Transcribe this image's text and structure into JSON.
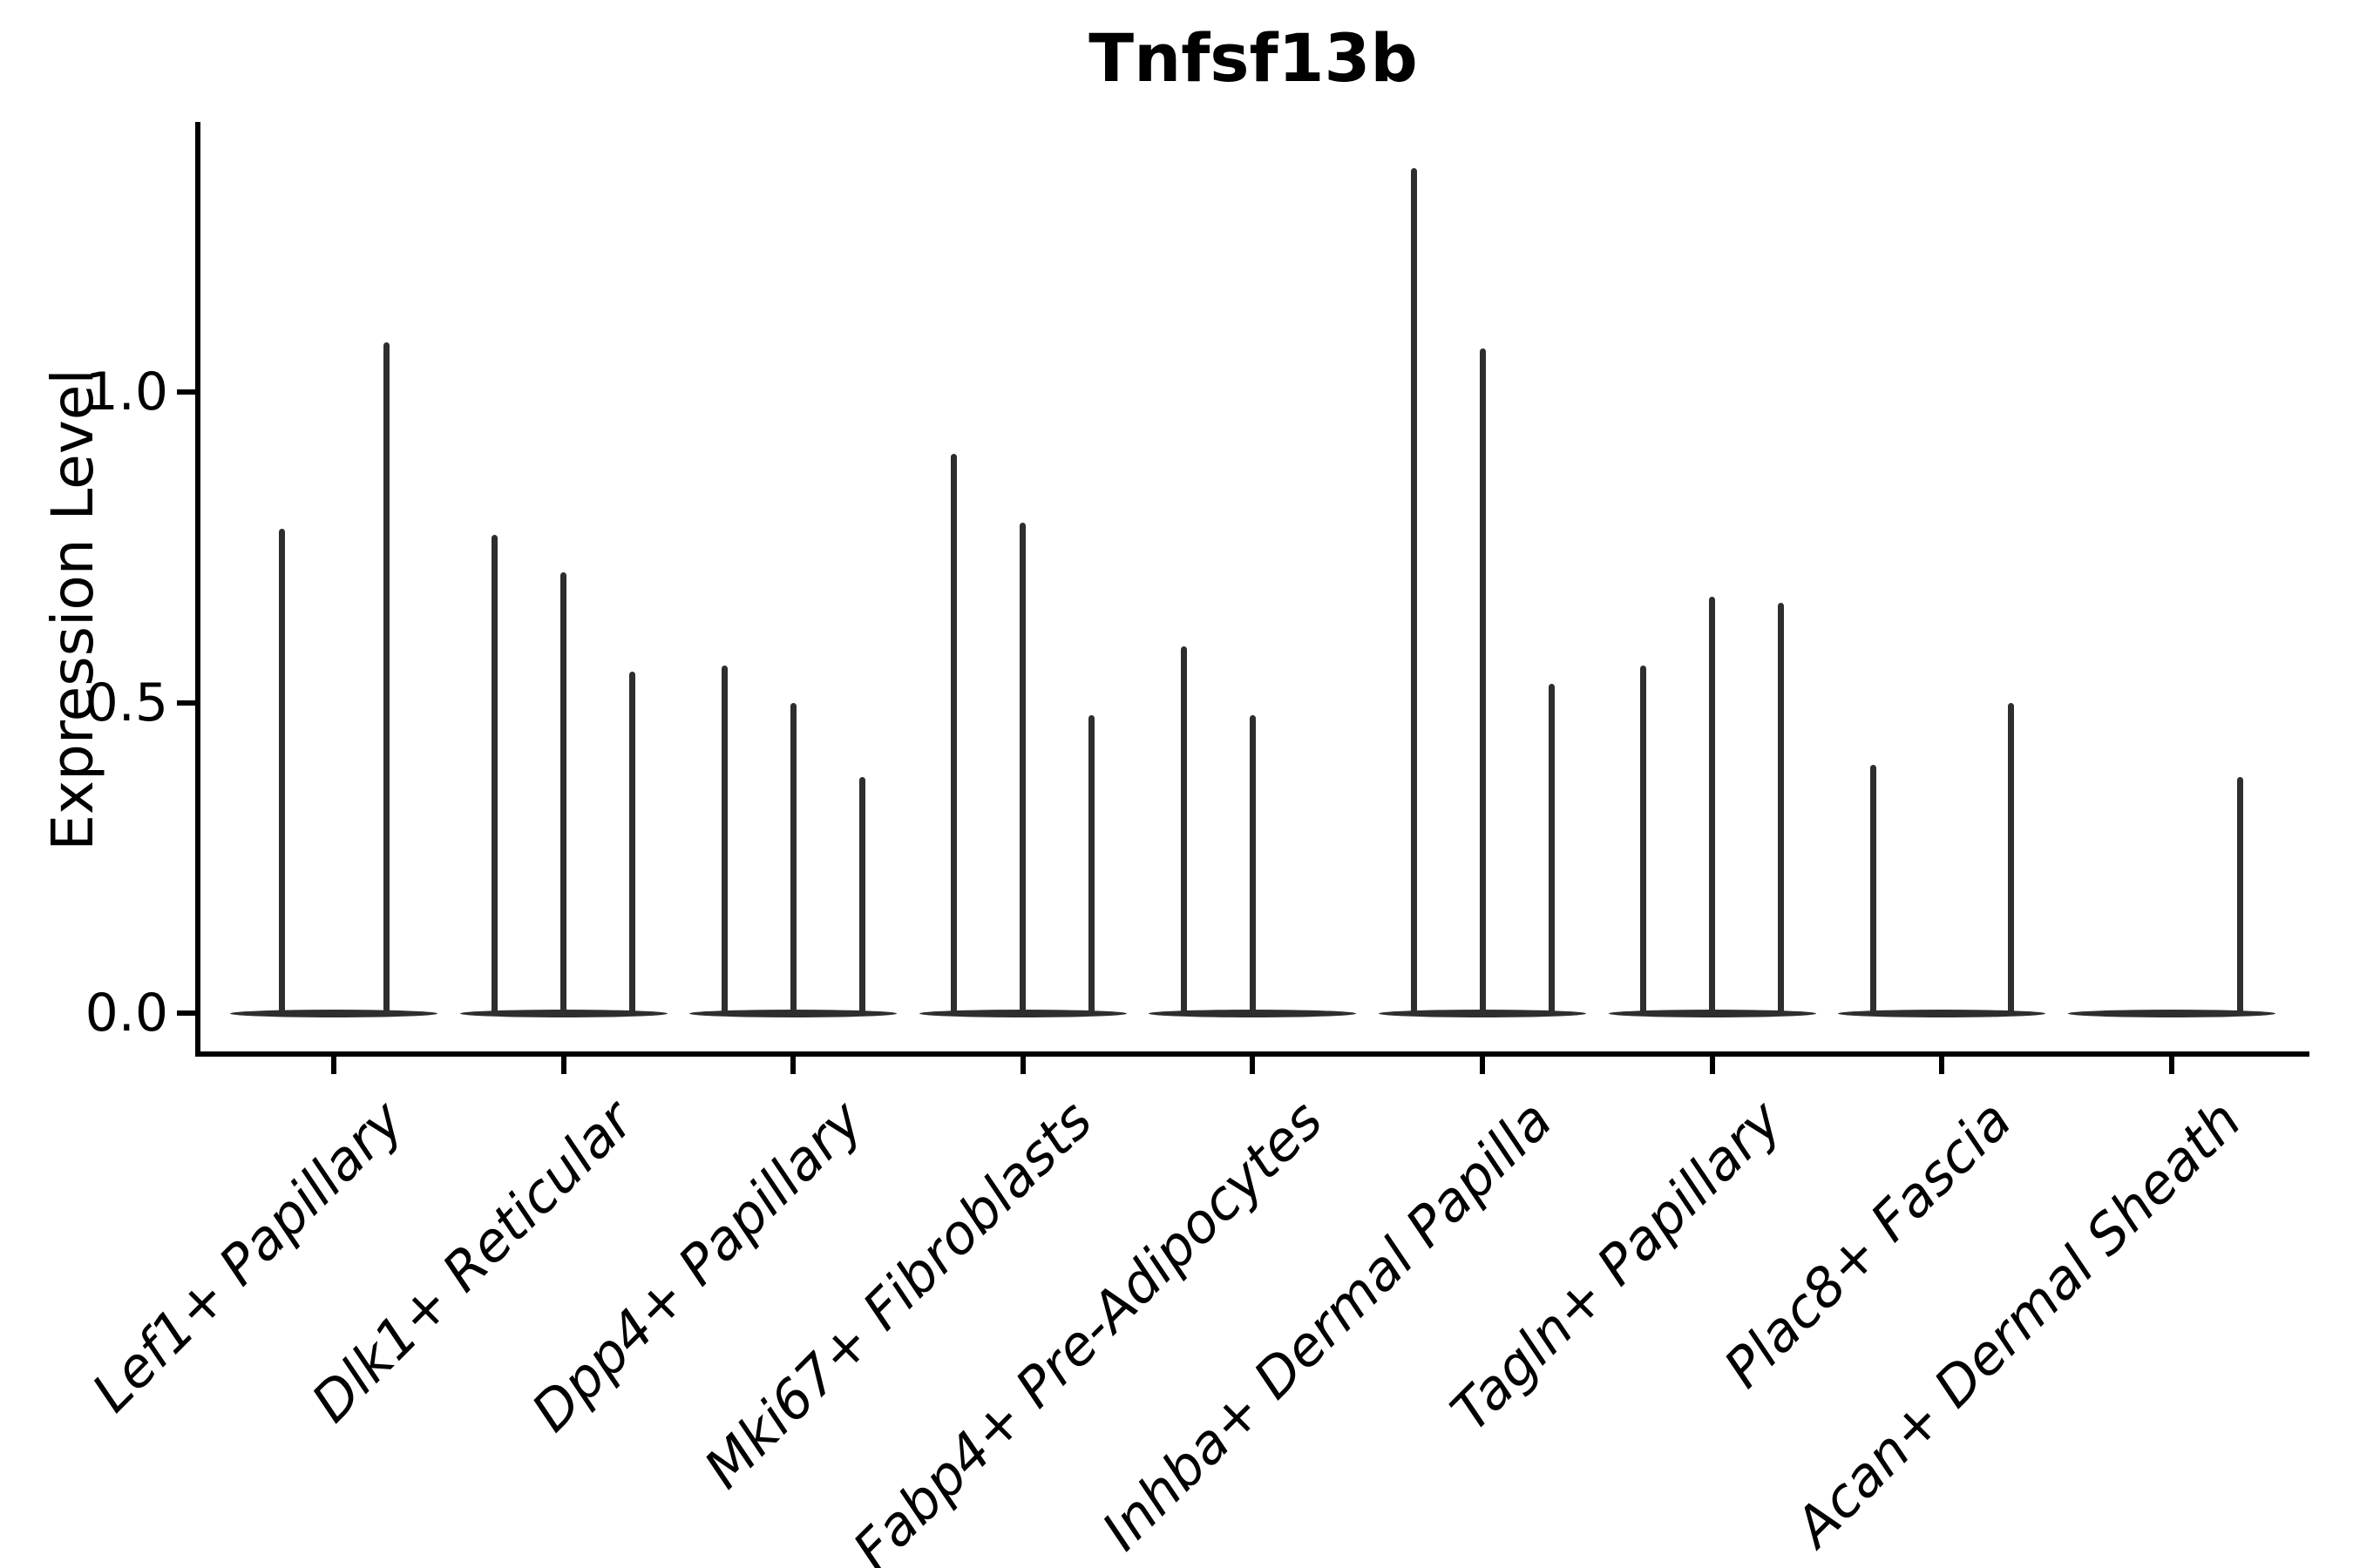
{
  "chart_data": {
    "type": "violin",
    "title": "Tnfsf13b",
    "xlabel": "",
    "ylabel": "Expression Level",
    "ylim": [
      -0.07,
      1.43
    ],
    "yticks": [
      "0.0",
      "0.5",
      "1.0"
    ],
    "ytick_values": [
      0.0,
      0.5,
      1.0
    ],
    "grid": false,
    "legend": "none",
    "violin_style": "zero-inflated: flat body at 0 with thin spike to max expression",
    "violin_color": "#2e2e2e",
    "categories": [
      "Lef1+ Papillary",
      "Dlk1+ Reticular",
      "Dpp4+ Papillary",
      "Mki67+ Fibroblasts",
      "Fabp4+ Pre-Adipocytes",
      "Inhba+ Dermal Papilla",
      "Tagln+ Papillary",
      "Plac8+ Fascia",
      "Acan+ Dermal Sheath"
    ],
    "groups": [
      {
        "label": "Lef1+ Papillary",
        "violin_max": [
          0.78,
          1.08
        ]
      },
      {
        "label": "Dlk1+ Reticular",
        "violin_max": [
          0.77,
          0.71,
          0.55
        ]
      },
      {
        "label": "Dpp4+ Papillary",
        "violin_max": [
          0.56,
          0.5,
          0.38
        ]
      },
      {
        "label": "Mki67+ Fibroblasts",
        "violin_max": [
          0.9,
          0.79,
          0.48
        ]
      },
      {
        "label": "Fabp4+ Pre-Adipocytes",
        "violin_max": [
          0.59,
          0.48,
          null
        ]
      },
      {
        "label": "Inhba+ Dermal Papilla",
        "violin_max": [
          1.36,
          1.07,
          0.53
        ]
      },
      {
        "label": "Tagln+ Papillary",
        "violin_max": [
          0.56,
          0.67,
          0.66
        ]
      },
      {
        "label": "Plac8+ Fascia",
        "violin_max": [
          0.4,
          null,
          0.5
        ]
      },
      {
        "label": "Acan+ Dermal Sheath",
        "violin_max": [
          null,
          null,
          0.38
        ]
      }
    ]
  }
}
